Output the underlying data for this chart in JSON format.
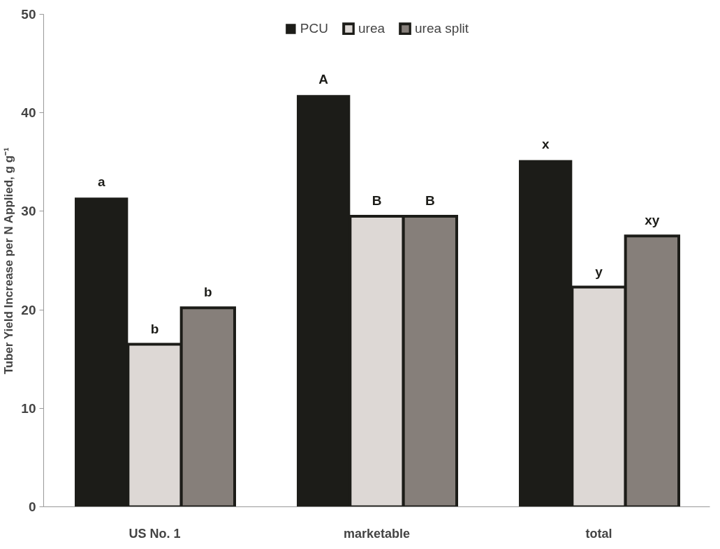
{
  "chart_data": {
    "type": "bar",
    "ylabel": "Tuber Yield Increase per N Applied, g g⁻¹",
    "categories": [
      "US No. 1",
      "marketable",
      "total"
    ],
    "series": [
      {
        "name": "PCU",
        "color": "#1c1c18",
        "values": [
          31.4,
          41.8,
          35.2
        ],
        "value_labels": [
          "a",
          "A",
          "x"
        ]
      },
      {
        "name": "urea",
        "color": "#ddd8d5",
        "values": [
          16.5,
          29.5,
          22.3
        ],
        "value_labels": [
          "b",
          "B",
          "y"
        ]
      },
      {
        "name": "urea split",
        "color": "#867f7a",
        "values": [
          20.2,
          29.5,
          27.5
        ],
        "value_labels": [
          "b",
          "B",
          "xy"
        ]
      }
    ],
    "ylim": [
      0,
      50
    ],
    "yticks": [
      0,
      10,
      20,
      30,
      40,
      50
    ],
    "grid": false,
    "legend": "top"
  }
}
